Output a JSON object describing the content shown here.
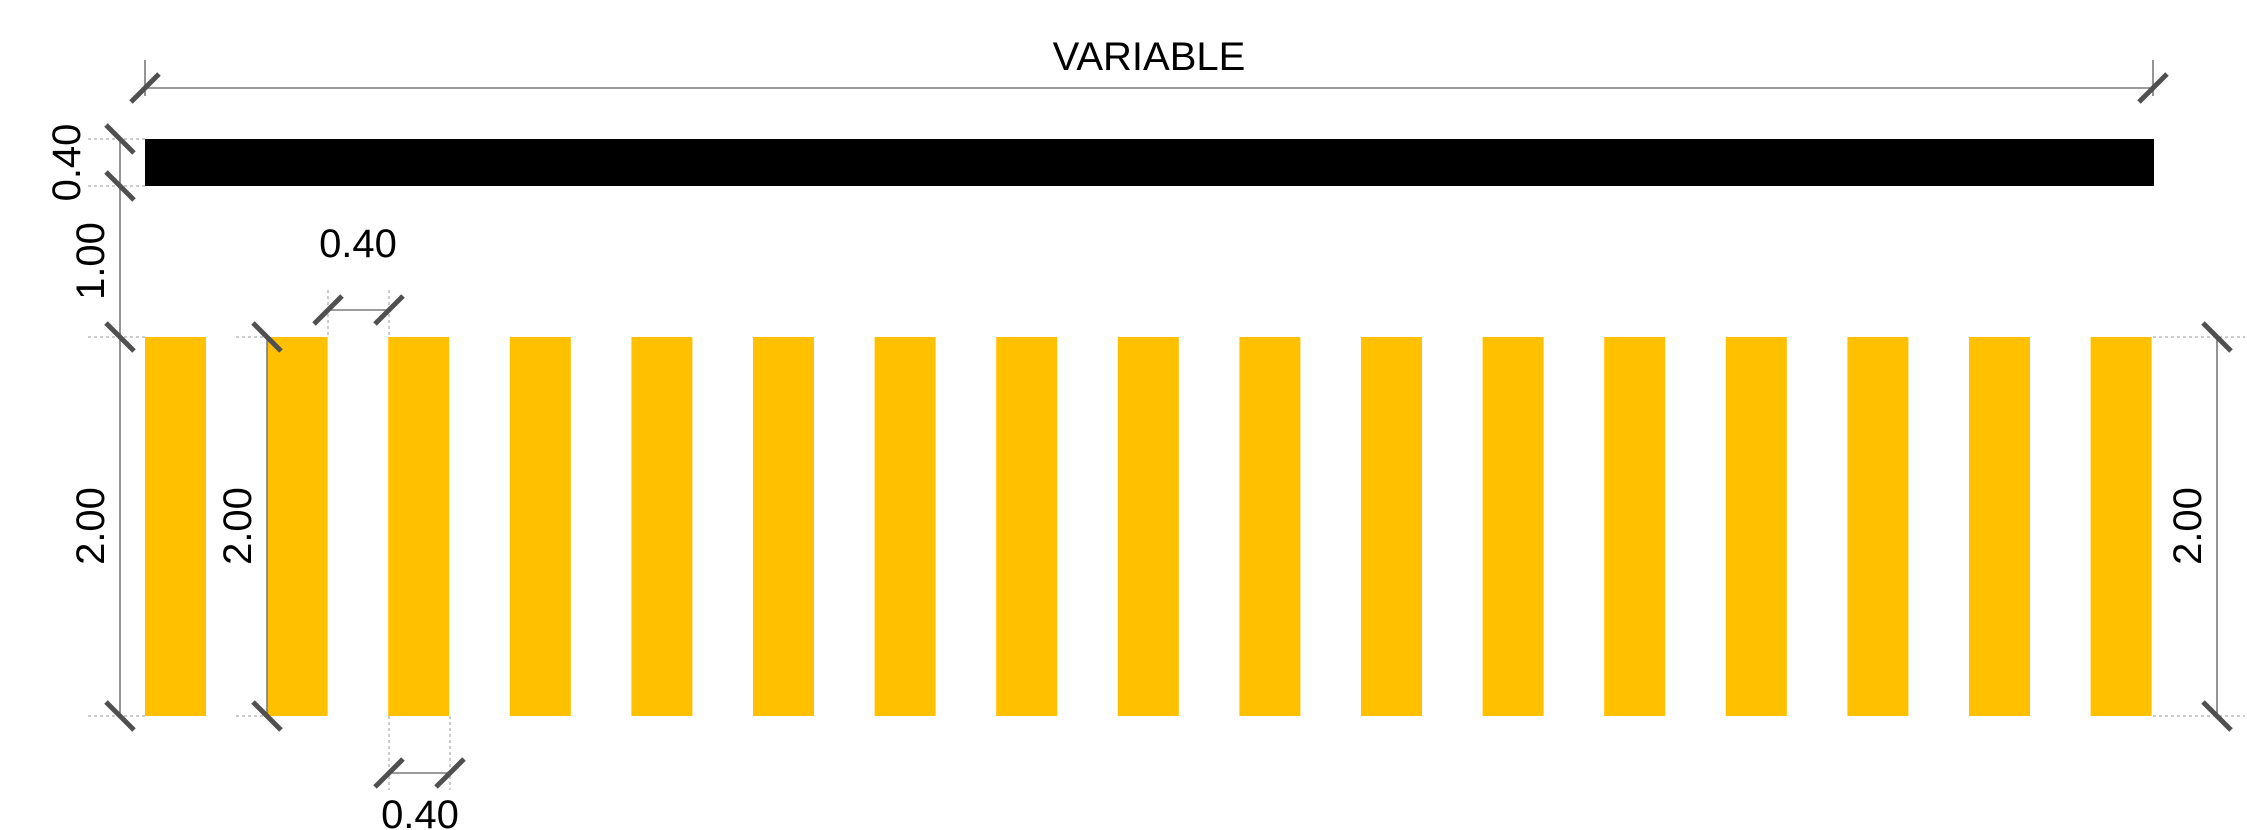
{
  "drawing": {
    "title_dimension": "VARIABLE",
    "black_bar_height": "0.40",
    "gap_height": "1.00",
    "stripe_width_top": "0.40",
    "stripe_width_bottom": "0.40",
    "stripe_height_left": "2.00",
    "stripe_height_inner": "2.00",
    "stripe_height_right": "2.00",
    "stripe_count": 17,
    "colors": {
      "black_bar": "#000000",
      "stripe": "#ffc000",
      "dimension_line": "#7a7a7a",
      "tick": "#505050"
    }
  }
}
